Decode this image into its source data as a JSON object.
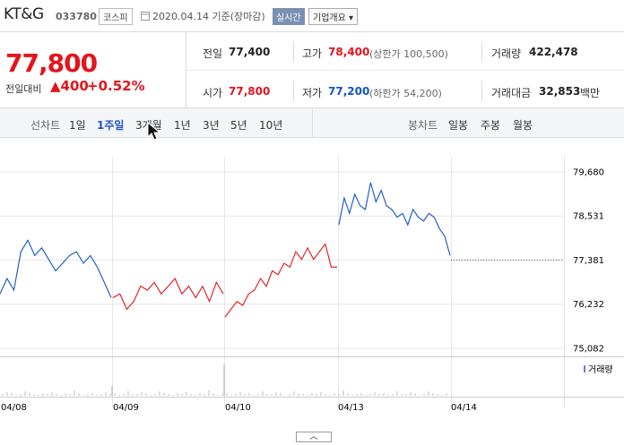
{
  "header": {
    "name": "KT&G",
    "code": "033780",
    "market": "코스피",
    "date": "2020.04.14 기준(장마감)",
    "realtime": "실시간",
    "company_info": "기업개요 ▾"
  },
  "quote": {
    "price": "77,800",
    "change_label": "전일대비",
    "change": "▲400",
    "change_pct": "+0.52%",
    "prev_label": "전일",
    "prev": "77,400",
    "high_label": "고가",
    "high": "78,400",
    "upper_limit": "(상한가 100,500)",
    "volume_label": "거래량",
    "volume": "422,478",
    "open_label": "시가",
    "open": "77,800",
    "low_label": "저가",
    "low": "77,200",
    "lower_limit": "(하한가 54,200)",
    "amount_label": "거래대금",
    "amount": "32,853",
    "amount_unit": "백만"
  },
  "tabs": {
    "line_label": "선차트",
    "periods": [
      "1일",
      "1주일",
      "3개월",
      "1년",
      "3년",
      "5년",
      "10년"
    ],
    "active_period": "1주일",
    "candle_label": "봉차트",
    "candles": [
      "일봉",
      "주봉",
      "월봉"
    ]
  },
  "chart_data": {
    "type": "line",
    "y_ticks": [
      "79,680",
      "78,531",
      "77,381",
      "76,232",
      "75,082"
    ],
    "ylim": [
      75082,
      79680
    ],
    "x_ticks": [
      "04/08",
      "04/09",
      "04/10",
      "04/13",
      "04/14"
    ],
    "reference_line": 77381,
    "colors": {
      "up": "#e3141d",
      "down": "#1254c4"
    },
    "volume_label": "거래량",
    "series": [
      {
        "session": "04/08",
        "direction": "down",
        "values": [
          76500,
          76900,
          76600,
          77600,
          77900,
          77500,
          77700,
          77400,
          77100,
          77300,
          77500,
          77600,
          77300,
          77500,
          77200,
          76800,
          76400
        ]
      },
      {
        "session": "04/09",
        "direction": "up",
        "values": [
          76400,
          76500,
          76100,
          76300,
          76700,
          76600,
          76800,
          76500,
          76700,
          76900,
          76500,
          76700,
          76400,
          76700,
          76300,
          76800,
          76500
        ]
      },
      {
        "session": "04/10",
        "direction": "up",
        "values": [
          75900,
          76100,
          76300,
          76200,
          76500,
          76600,
          76900,
          76700,
          77100,
          77000,
          77300,
          77200,
          77600,
          77400,
          77700,
          77400,
          77600,
          77800,
          77200,
          77200
        ]
      },
      {
        "session": "04/13",
        "direction": "down",
        "values": [
          78300,
          79000,
          78600,
          79100,
          78800,
          78700,
          79400,
          78900,
          79200,
          78800,
          78700,
          78500,
          78600,
          78300,
          78700,
          78500,
          78400,
          78600,
          78500,
          78200,
          78000,
          77500
        ]
      }
    ]
  }
}
